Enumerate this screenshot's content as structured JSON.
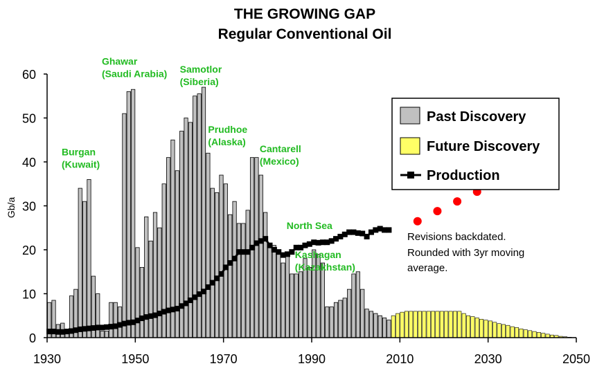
{
  "chart_data": {
    "type": "bar",
    "title": "THE GROWING GAP",
    "subtitle": "Regular Conventional Oil",
    "ylabel": "Gb/a",
    "xlabel": "",
    "xlim": [
      1930,
      2050
    ],
    "ylim": [
      0,
      60
    ],
    "xticks": [
      1930,
      1950,
      1970,
      1990,
      2010,
      2030,
      2050
    ],
    "yticks": [
      0,
      10,
      20,
      30,
      40,
      50,
      60
    ],
    "legend": {
      "placement": "top-right",
      "entries": [
        "Past Discovery",
        "Future Discovery",
        "Production"
      ]
    },
    "colors": {
      "past": "#c0c0c0",
      "future": "#ffff66",
      "production": "#000000",
      "revisions": "#ff0000",
      "annotation": "#22bb22"
    },
    "series": [
      {
        "name": "Past Discovery",
        "type": "bar",
        "x": [
          1930,
          1931,
          1932,
          1933,
          1934,
          1935,
          1936,
          1937,
          1938,
          1939,
          1940,
          1941,
          1942,
          1943,
          1944,
          1945,
          1946,
          1947,
          1948,
          1949,
          1950,
          1951,
          1952,
          1953,
          1954,
          1955,
          1956,
          1957,
          1958,
          1959,
          1960,
          1961,
          1962,
          1963,
          1964,
          1965,
          1966,
          1967,
          1968,
          1969,
          1970,
          1971,
          1972,
          1973,
          1974,
          1975,
          1976,
          1977,
          1978,
          1979,
          1980,
          1981,
          1982,
          1983,
          1984,
          1985,
          1986,
          1987,
          1988,
          1989,
          1990,
          1991,
          1992,
          1993,
          1994,
          1995,
          1996,
          1997,
          1998,
          1999,
          2000,
          2001,
          2002,
          2003,
          2004,
          2005,
          2006,
          2007
        ],
        "values": [
          8,
          8.5,
          3,
          3.3,
          1.5,
          9.5,
          11,
          34,
          31,
          36,
          14,
          10,
          1.5,
          1.5,
          8,
          8,
          7,
          51,
          56,
          56.5,
          20.5,
          16,
          27.5,
          22,
          28.5,
          25,
          35,
          41,
          45,
          38,
          47,
          50,
          49,
          55,
          55.5,
          57,
          42,
          34,
          33,
          37,
          35,
          28,
          31,
          26,
          26,
          29,
          41,
          41,
          37,
          28.5,
          21,
          21,
          19,
          17,
          19,
          14.5,
          14.5,
          15,
          18,
          16,
          20,
          19,
          17,
          7,
          7,
          8,
          8.5,
          9,
          11,
          14.5,
          15,
          11,
          6.5,
          6,
          5.5,
          5,
          4.5,
          4
        ]
      },
      {
        "name": "Future Discovery",
        "type": "bar",
        "x": [
          2008,
          2009,
          2010,
          2011,
          2012,
          2013,
          2014,
          2015,
          2016,
          2017,
          2018,
          2019,
          2020,
          2021,
          2022,
          2023,
          2024,
          2025,
          2026,
          2027,
          2028,
          2029,
          2030,
          2031,
          2032,
          2033,
          2034,
          2035,
          2036,
          2037,
          2038,
          2039,
          2040,
          2041,
          2042,
          2043,
          2044,
          2045,
          2046,
          2047,
          2048,
          2049
        ],
        "values": [
          5,
          5.5,
          5.8,
          6,
          6,
          6,
          6,
          6,
          6,
          6,
          6,
          6,
          6,
          6,
          6,
          6,
          5.5,
          5,
          4.8,
          4.5,
          4.2,
          4,
          3.8,
          3.5,
          3.2,
          3,
          2.8,
          2.5,
          2.3,
          2,
          1.8,
          1.6,
          1.4,
          1.2,
          1,
          0.8,
          0.6,
          0.5,
          0.3,
          0.2,
          0.1,
          0.05
        ]
      },
      {
        "name": "Production",
        "type": "line",
        "x": [
          1930,
          1931,
          1932,
          1933,
          1934,
          1935,
          1936,
          1937,
          1938,
          1939,
          1940,
          1941,
          1942,
          1943,
          1944,
          1945,
          1946,
          1947,
          1948,
          1949,
          1950,
          1951,
          1952,
          1953,
          1954,
          1955,
          1956,
          1957,
          1958,
          1959,
          1960,
          1961,
          1962,
          1963,
          1964,
          1965,
          1966,
          1967,
          1968,
          1969,
          1970,
          1971,
          1972,
          1973,
          1974,
          1975,
          1976,
          1977,
          1978,
          1979,
          1980,
          1981,
          1982,
          1983,
          1984,
          1985,
          1986,
          1987,
          1988,
          1989,
          1990,
          1991,
          1992,
          1993,
          1994,
          1995,
          1996,
          1997,
          1998,
          1999,
          2000,
          2001,
          2002,
          2003,
          2004,
          2005,
          2006,
          2007
        ],
        "values": [
          1.4,
          1.4,
          1.3,
          1.3,
          1.4,
          1.5,
          1.7,
          1.9,
          2,
          2.1,
          2.2,
          2.3,
          2.3,
          2.4,
          2.5,
          2.6,
          2.9,
          3.2,
          3.4,
          3.5,
          3.9,
          4.4,
          4.7,
          4.9,
          5.1,
          5.5,
          5.9,
          6.2,
          6.4,
          6.6,
          7.2,
          7.8,
          8.5,
          9.2,
          9.9,
          10.5,
          11.5,
          12.5,
          13.5,
          14.5,
          16,
          17,
          18,
          19.5,
          19.5,
          19.5,
          20.5,
          21.5,
          22,
          22.5,
          21,
          20,
          19.5,
          18.8,
          19,
          19.5,
          20.5,
          20.5,
          21,
          21.3,
          21.7,
          21.6,
          21.7,
          21.7,
          22,
          22.5,
          23,
          23.5,
          24,
          24,
          23.8,
          23.7,
          23,
          24,
          24.5,
          24.8,
          24.5,
          24.5
        ]
      },
      {
        "name": "Revisions",
        "type": "scatter",
        "x": [
          2014,
          2018.5,
          2023,
          2027.5,
          2032.5
        ],
        "values": [
          26.5,
          28.8,
          31,
          33.2,
          36.3
        ]
      }
    ],
    "annotations": [
      {
        "lines": [
          "Burgan",
          "(Kuwait)"
        ],
        "x": 1933.3,
        "y": 41.5
      },
      {
        "lines": [
          "Ghawar",
          "(Saudi Arabia)"
        ],
        "x": 1942.4,
        "y": 62.1
      },
      {
        "lines": [
          "Samotlor",
          "(Siberia)"
        ],
        "x": 1960.1,
        "y": 60.3
      },
      {
        "lines": [
          "Prudhoe",
          "(Alaska)"
        ],
        "x": 1966.5,
        "y": 46.6
      },
      {
        "lines": [
          "Cantarell",
          "(Mexico)"
        ],
        "x": 1978.2,
        "y": 42.2
      },
      {
        "lines": [
          "North Sea"
        ],
        "x": 1984.3,
        "y": 24.7
      },
      {
        "lines": [
          "Kashagan",
          "(Kazakhstan)"
        ],
        "x": 1986.2,
        "y": 18.1
      }
    ],
    "note": [
      "Revisions backdated.",
      "Rounded with 3yr moving",
      "average."
    ]
  }
}
